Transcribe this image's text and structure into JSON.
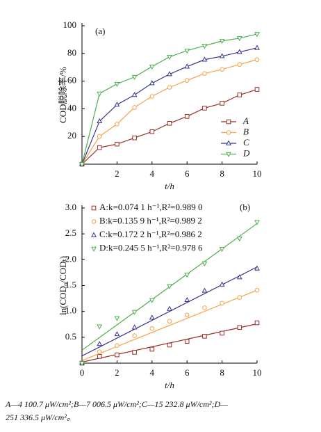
{
  "chart_data": [
    {
      "type": "line",
      "panel_label": "(a)",
      "x_label": "t/h",
      "y_label": "COD脱除率/%",
      "x": [
        0,
        1,
        2,
        3,
        4,
        5,
        6,
        7,
        8,
        9,
        10
      ],
      "xlim": [
        0,
        10
      ],
      "xticks": [
        2,
        4,
        6,
        8,
        10
      ],
      "ylim": [
        0,
        100
      ],
      "yticks": [
        20,
        40,
        60,
        80,
        100
      ],
      "series": [
        {
          "name": "A",
          "color": "#9b2d20",
          "marker": "square",
          "values": [
            0,
            12,
            14.5,
            19,
            23.5,
            29.5,
            34.5,
            40.5,
            44,
            50,
            54
          ]
        },
        {
          "name": "B",
          "color": "#f5a24a",
          "marker": "circle",
          "values": [
            0,
            20,
            29,
            41,
            49,
            55.5,
            60.5,
            65.5,
            68.5,
            72,
            75.5
          ]
        },
        {
          "name": "C",
          "color": "#34348f",
          "marker": "triangle-up",
          "values": [
            0,
            31,
            43,
            50,
            58.5,
            65,
            70.5,
            75.5,
            78,
            81,
            84
          ]
        },
        {
          "name": "D",
          "color": "#4cae4c",
          "marker": "triangle-down",
          "values": [
            0,
            51,
            58,
            63,
            70.5,
            77.5,
            82,
            85.5,
            89,
            91,
            94
          ]
        }
      ]
    },
    {
      "type": "scatter",
      "panel_label": "(b)",
      "x_label": "t/h",
      "y_label": "ln(COD₀/CODₜ)",
      "x": [
        0,
        1,
        2,
        3,
        4,
        5,
        6,
        7,
        8,
        9,
        10
      ],
      "xlim": [
        0,
        10
      ],
      "xticks": [
        0,
        2,
        4,
        6,
        8,
        10
      ],
      "ylim": [
        0,
        3
      ],
      "yticks": [
        0.5,
        {
          "value": 1,
          "label": "1.0"
        },
        1.5,
        {
          "value": 2,
          "label": "2.0"
        },
        2.5,
        {
          "value": 3,
          "label": "3.0"
        }
      ],
      "series": [
        {
          "name": "A:k=0.074 1 h⁻¹,R²=0.989 0",
          "color": "#9b2d20",
          "marker": "square",
          "values": [
            0,
            0.13,
            0.16,
            0.21,
            0.27,
            0.35,
            0.42,
            0.52,
            0.58,
            0.69,
            0.78
          ],
          "fit": {
            "x": [
              0,
              10
            ],
            "values": [
              0.02,
              0.76
            ]
          }
        },
        {
          "name": "B:k=0.135 9 h⁻¹,R²=0.989 2",
          "color": "#f5a24a",
          "marker": "circle",
          "values": [
            0,
            0.22,
            0.34,
            0.53,
            0.67,
            0.81,
            0.93,
            1.07,
            1.16,
            1.27,
            1.41
          ],
          "fit": {
            "x": [
              0,
              10
            ],
            "values": [
              0.05,
              1.41
            ]
          }
        },
        {
          "name": "C:k=0.172 2 h⁻¹,R²=0.986 2",
          "color": "#34348f",
          "marker": "triangle-up",
          "values": [
            0,
            0.37,
            0.56,
            0.69,
            0.88,
            1.05,
            1.22,
            1.4,
            1.52,
            1.66,
            1.83
          ],
          "fit": {
            "x": [
              0,
              10
            ],
            "values": [
              0.14,
              1.86
            ]
          }
        },
        {
          "name": "D:k=0.245 5 h⁻¹,R²=0.978 6",
          "color": "#4cae4c",
          "marker": "triangle-down",
          "values": [
            0,
            0.71,
            0.87,
            0.99,
            1.22,
            1.49,
            1.71,
            1.93,
            2.21,
            2.41,
            2.73
          ],
          "fit": {
            "x": [
              0,
              10
            ],
            "values": [
              0.25,
              2.7
            ]
          }
        }
      ]
    }
  ],
  "caption": {
    "lines": [
      "A—4 100.7 μW/cm²;B—7 006.5 μW/cm²;C—15 232.8 μW/cm²;D—",
      "251 336.5 μW/cm²。"
    ]
  }
}
